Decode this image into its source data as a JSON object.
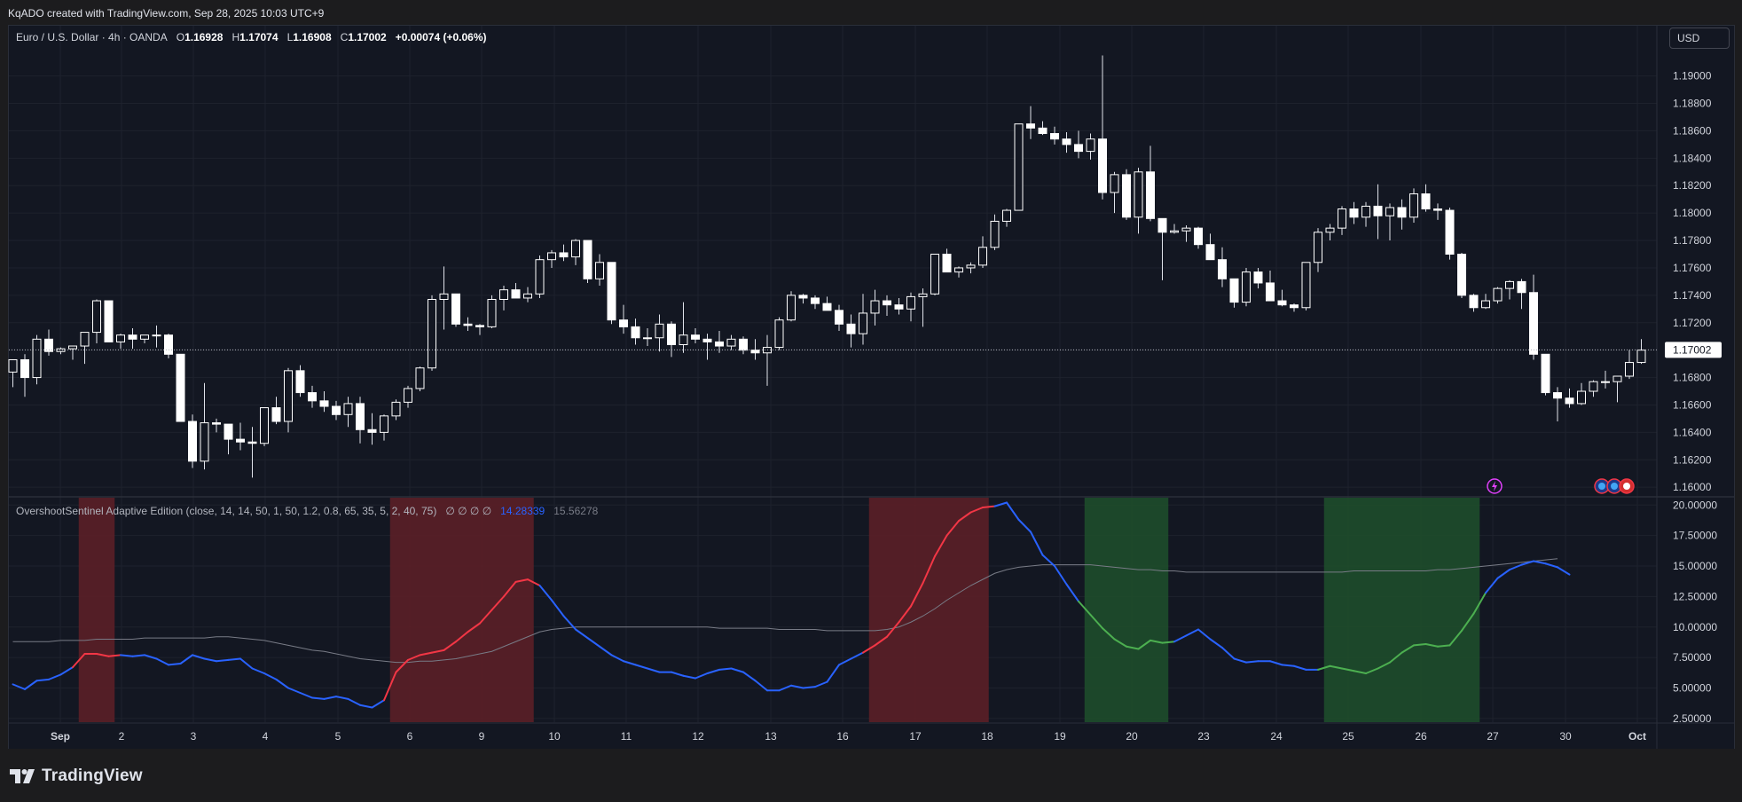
{
  "header": {
    "credit": "KqADO created with TradingView.com, Sep 28, 2025 10:03 UTC+9"
  },
  "currency_button": "USD",
  "legend": {
    "symbol": "Euro / U.S. Dollar · 4h · OANDA",
    "o_label": "O",
    "o_value": "1.16928",
    "h_label": "H",
    "h_value": "1.17074",
    "l_label": "L",
    "l_value": "1.16908",
    "c_label": "C",
    "c_value": "1.17002",
    "change": "+0.00074 (+0.06%)"
  },
  "indicator": {
    "title": "OvershootSentinel Adaptive Edition (close, 14, 14, 50, 1, 50, 1.2, 0.8, 65, 35, 5, 2, 40, 75)",
    "empty_values": "∅ ∅ ∅ ∅",
    "value_main": "14.28339",
    "value_baseline": "15.56278"
  },
  "footer": {
    "brand": "TradingView"
  },
  "colors": {
    "bg": "#131722",
    "grid": "#1e222d",
    "up": "#ffffff",
    "down": "#ffffff",
    "blue": "#2962ff",
    "red": "#f23645",
    "green": "#4caf50",
    "baseline": "#787b86",
    "red_zone": "#5b1f27",
    "green_zone": "#1e4d2b"
  },
  "chart_data": [
    {
      "type": "candlestick",
      "title": "Euro / U.S. Dollar · 4h · OANDA",
      "ylim": [
        1.1593,
        1.1936
      ],
      "y_ticks": [
        "1.19000",
        "1.18800",
        "1.18600",
        "1.18400",
        "1.18200",
        "1.18000",
        "1.17800",
        "1.17600",
        "1.17400",
        "1.17200",
        "1.17000",
        "1.16800",
        "1.16600",
        "1.16400",
        "1.16200",
        "1.16000"
      ],
      "last_price": "1.17002",
      "x_ticks": [
        "Sep",
        "2",
        "3",
        "4",
        "5",
        "6",
        "9",
        "10",
        "11",
        "12",
        "13",
        "16",
        "17",
        "18",
        "19",
        "20",
        "23",
        "24",
        "25",
        "26",
        "27",
        "30",
        "Oct"
      ],
      "candles": [
        [
          1.1684,
          1.1693,
          1.1673,
          1.1693
        ],
        [
          1.1693,
          1.1697,
          1.1666,
          1.168
        ],
        [
          1.168,
          1.1711,
          1.1675,
          1.1708
        ],
        [
          1.1708,
          1.1715,
          1.1696,
          1.1699
        ],
        [
          1.1699,
          1.1702,
          1.1697,
          1.1701
        ],
        [
          1.1701,
          1.1703,
          1.1693,
          1.1703
        ],
        [
          1.1703,
          1.1713,
          1.169,
          1.1713
        ],
        [
          1.1713,
          1.1737,
          1.1705,
          1.1736
        ],
        [
          1.1736,
          1.1736,
          1.1706,
          1.1706
        ],
        [
          1.1706,
          1.1712,
          1.1701,
          1.1711
        ],
        [
          1.1711,
          1.1716,
          1.1701,
          1.1708
        ],
        [
          1.1708,
          1.1711,
          1.1705,
          1.1711
        ],
        [
          1.1711,
          1.1718,
          1.1702,
          1.1711
        ],
        [
          1.1711,
          1.1712,
          1.1694,
          1.1697
        ],
        [
          1.1697,
          1.1697,
          1.1648,
          1.1648
        ],
        [
          1.1648,
          1.1653,
          1.1614,
          1.1619
        ],
        [
          1.1619,
          1.1676,
          1.1613,
          1.1647
        ],
        [
          1.1647,
          1.165,
          1.164,
          1.1646
        ],
        [
          1.1646,
          1.1646,
          1.1624,
          1.1635
        ],
        [
          1.1635,
          1.1647,
          1.1627,
          1.1633
        ],
        [
          1.1633,
          1.1644,
          1.1607,
          1.1632
        ],
        [
          1.1632,
          1.1658,
          1.163,
          1.1658
        ],
        [
          1.1658,
          1.1666,
          1.1646,
          1.1648
        ],
        [
          1.1648,
          1.1687,
          1.164,
          1.1685
        ],
        [
          1.1685,
          1.1689,
          1.1666,
          1.1669
        ],
        [
          1.1669,
          1.1674,
          1.1658,
          1.1663
        ],
        [
          1.1663,
          1.167,
          1.1655,
          1.1659
        ],
        [
          1.1659,
          1.1663,
          1.1649,
          1.1653
        ],
        [
          1.1653,
          1.1666,
          1.1644,
          1.1661
        ],
        [
          1.1661,
          1.1666,
          1.1632,
          1.1642
        ],
        [
          1.1642,
          1.1654,
          1.1631,
          1.164
        ],
        [
          1.164,
          1.1653,
          1.1634,
          1.1652
        ],
        [
          1.1652,
          1.1664,
          1.1649,
          1.1662
        ],
        [
          1.1662,
          1.1674,
          1.1658,
          1.1672
        ],
        [
          1.1672,
          1.1688,
          1.167,
          1.1687
        ],
        [
          1.1687,
          1.174,
          1.1685,
          1.1737
        ],
        [
          1.1737,
          1.1761,
          1.1715,
          1.1741
        ],
        [
          1.1741,
          1.1741,
          1.1717,
          1.1719
        ],
        [
          1.1719,
          1.1724,
          1.1714,
          1.1718
        ],
        [
          1.1718,
          1.1719,
          1.1711,
          1.1717
        ],
        [
          1.1717,
          1.174,
          1.1716,
          1.1737
        ],
        [
          1.1737,
          1.1747,
          1.1729,
          1.1744
        ],
        [
          1.1744,
          1.1749,
          1.1738,
          1.1738
        ],
        [
          1.1738,
          1.1746,
          1.1735,
          1.1741
        ],
        [
          1.1741,
          1.1769,
          1.1738,
          1.1766
        ],
        [
          1.1766,
          1.1773,
          1.176,
          1.1771
        ],
        [
          1.1771,
          1.1777,
          1.1765,
          1.1768
        ],
        [
          1.1768,
          1.1781,
          1.1762,
          1.178
        ],
        [
          1.178,
          1.178,
          1.1749,
          1.1752
        ],
        [
          1.1752,
          1.177,
          1.1747,
          1.1764
        ],
        [
          1.1764,
          1.1764,
          1.1719,
          1.1722
        ],
        [
          1.1722,
          1.1733,
          1.1712,
          1.1717
        ],
        [
          1.1717,
          1.1723,
          1.1704,
          1.1709
        ],
        [
          1.1709,
          1.1716,
          1.1703,
          1.1709
        ],
        [
          1.1709,
          1.1726,
          1.1699,
          1.1719
        ],
        [
          1.1719,
          1.1721,
          1.1695,
          1.1704
        ],
        [
          1.1704,
          1.1735,
          1.1698,
          1.1711
        ],
        [
          1.1711,
          1.1716,
          1.1705,
          1.1708
        ],
        [
          1.1708,
          1.1712,
          1.1693,
          1.1706
        ],
        [
          1.1706,
          1.1714,
          1.1698,
          1.1703
        ],
        [
          1.1703,
          1.1711,
          1.17,
          1.1708
        ],
        [
          1.1708,
          1.171,
          1.1697,
          1.17
        ],
        [
          1.17,
          1.1708,
          1.1693,
          1.1698
        ],
        [
          1.1698,
          1.1711,
          1.1674,
          1.1702
        ],
        [
          1.1702,
          1.1724,
          1.17,
          1.1722
        ],
        [
          1.1722,
          1.1743,
          1.1721,
          1.174
        ],
        [
          1.174,
          1.1741,
          1.1734,
          1.1738
        ],
        [
          1.1738,
          1.174,
          1.173,
          1.1734
        ],
        [
          1.1734,
          1.1739,
          1.1729,
          1.1729
        ],
        [
          1.1729,
          1.1733,
          1.1714,
          1.1719
        ],
        [
          1.1719,
          1.1726,
          1.1702,
          1.1712
        ],
        [
          1.1712,
          1.1741,
          1.1704,
          1.1727
        ],
        [
          1.1727,
          1.1744,
          1.1718,
          1.1736
        ],
        [
          1.1736,
          1.174,
          1.1725,
          1.1733
        ],
        [
          1.1733,
          1.1738,
          1.1726,
          1.173
        ],
        [
          1.173,
          1.1742,
          1.1721,
          1.1739
        ],
        [
          1.1739,
          1.1745,
          1.1717,
          1.1741
        ],
        [
          1.1741,
          1.177,
          1.174,
          1.177
        ],
        [
          1.177,
          1.1774,
          1.1757,
          1.1757
        ],
        [
          1.1757,
          1.1761,
          1.1753,
          1.176
        ],
        [
          1.176,
          1.1764,
          1.1756,
          1.1762
        ],
        [
          1.1762,
          1.1783,
          1.176,
          1.1775
        ],
        [
          1.1775,
          1.1799,
          1.1773,
          1.1794
        ],
        [
          1.1794,
          1.1803,
          1.179,
          1.1802
        ],
        [
          1.1802,
          1.1865,
          1.1802,
          1.1865
        ],
        [
          1.1865,
          1.1878,
          1.1854,
          1.1862
        ],
        [
          1.1862,
          1.1867,
          1.1857,
          1.1858
        ],
        [
          1.1858,
          1.1863,
          1.185,
          1.1854
        ],
        [
          1.1854,
          1.1859,
          1.1844,
          1.185
        ],
        [
          1.185,
          1.186,
          1.184,
          1.1845
        ],
        [
          1.1845,
          1.1858,
          1.1839,
          1.1854
        ],
        [
          1.1854,
          1.1915,
          1.181,
          1.1815
        ],
        [
          1.1815,
          1.183,
          1.18,
          1.1828
        ],
        [
          1.1828,
          1.1832,
          1.1795,
          1.1797
        ],
        [
          1.1797,
          1.1833,
          1.1785,
          1.183
        ],
        [
          1.183,
          1.1849,
          1.1794,
          1.1796
        ],
        [
          1.1796,
          1.1796,
          1.1751,
          1.1786
        ],
        [
          1.1786,
          1.1792,
          1.1785,
          1.1787
        ],
        [
          1.1787,
          1.1791,
          1.1779,
          1.1789
        ],
        [
          1.1789,
          1.179,
          1.1774,
          1.1777
        ],
        [
          1.1777,
          1.1785,
          1.1766,
          1.1766
        ],
        [
          1.1766,
          1.1775,
          1.1746,
          1.1752
        ],
        [
          1.1752,
          1.1752,
          1.1731,
          1.1735
        ],
        [
          1.1735,
          1.176,
          1.1732,
          1.1757
        ],
        [
          1.1757,
          1.176,
          1.1745,
          1.1749
        ],
        [
          1.1749,
          1.1758,
          1.1736,
          1.1736
        ],
        [
          1.1736,
          1.1744,
          1.1732,
          1.1733
        ],
        [
          1.1733,
          1.1734,
          1.1728,
          1.1731
        ],
        [
          1.1731,
          1.1764,
          1.1729,
          1.1764
        ],
        [
          1.1764,
          1.1789,
          1.1757,
          1.1786
        ],
        [
          1.1786,
          1.1792,
          1.178,
          1.1789
        ],
        [
          1.1789,
          1.1805,
          1.1784,
          1.1803
        ],
        [
          1.1803,
          1.1808,
          1.1792,
          1.1797
        ],
        [
          1.1797,
          1.1808,
          1.179,
          1.1805
        ],
        [
          1.1805,
          1.1821,
          1.1781,
          1.1798
        ],
        [
          1.1798,
          1.1807,
          1.178,
          1.1804
        ],
        [
          1.1804,
          1.181,
          1.1788,
          1.1797
        ],
        [
          1.1797,
          1.1818,
          1.1793,
          1.1814
        ],
        [
          1.1814,
          1.1821,
          1.1801,
          1.1803
        ],
        [
          1.1803,
          1.1807,
          1.1795,
          1.1802
        ],
        [
          1.1802,
          1.1804,
          1.1766,
          1.177
        ],
        [
          1.177,
          1.1771,
          1.1738,
          1.174
        ],
        [
          1.174,
          1.1741,
          1.1728,
          1.1731
        ],
        [
          1.1731,
          1.1741,
          1.173,
          1.1736
        ],
        [
          1.1736,
          1.1746,
          1.1734,
          1.1745
        ],
        [
          1.1745,
          1.1751,
          1.1737,
          1.175
        ],
        [
          1.175,
          1.1752,
          1.173,
          1.1742
        ],
        [
          1.1742,
          1.1755,
          1.1693,
          1.1697
        ],
        [
          1.1697,
          1.1697,
          1.1667,
          1.1669
        ],
        [
          1.1669,
          1.1673,
          1.1648,
          1.1665
        ],
        [
          1.1665,
          1.1672,
          1.1658,
          1.1661
        ],
        [
          1.1661,
          1.1676,
          1.166,
          1.167
        ],
        [
          1.167,
          1.1678,
          1.1666,
          1.1677
        ],
        [
          1.1677,
          1.1685,
          1.1672,
          1.1677
        ],
        [
          1.1677,
          1.1681,
          1.1662,
          1.1681
        ],
        [
          1.1681,
          1.17,
          1.1679,
          1.1691
        ],
        [
          1.1691,
          1.1708,
          1.169,
          1.17
        ]
      ]
    },
    {
      "type": "line",
      "title": "OvershootSentinel Adaptive Edition (close, 14, 14, 50, 1, 50, 1.2, 0.8, 65, 35, 5, 2, 40, 75)",
      "ylim": [
        2.2,
        20.6
      ],
      "y_ticks": [
        "20.00000",
        "17.50000",
        "15.00000",
        "12.50000",
        "10.00000",
        "7.50000",
        "5.00000",
        "2.50000"
      ],
      "series": [
        {
          "values": [
            5.3,
            4.9,
            5.6,
            5.7,
            6.1,
            6.7,
            7.8,
            7.8,
            7.6,
            7.7,
            7.6,
            7.7,
            7.4,
            6.9,
            7.0,
            7.7,
            7.4,
            7.2,
            7.3,
            7.4,
            6.6,
            6.2,
            5.7,
            5.0,
            4.6,
            4.2,
            4.1,
            4.3,
            4.1,
            3.6,
            3.4,
            4.0,
            6.3,
            7.3,
            7.7,
            7.9,
            8.1,
            8.8,
            9.6,
            10.3,
            11.4,
            12.5,
            13.7,
            13.9,
            13.4,
            12.2,
            10.9,
            9.8,
            9.1,
            8.4,
            7.7,
            7.2,
            6.9,
            6.6,
            6.3,
            6.3,
            6.0,
            5.8,
            6.2,
            6.5,
            6.6,
            6.3,
            5.6,
            4.8,
            4.8,
            5.2,
            5.0,
            5.1,
            5.5,
            6.9,
            7.4,
            7.9,
            8.5,
            9.2,
            10.4,
            11.7,
            13.6,
            15.8,
            17.5,
            18.7,
            19.4,
            19.8,
            19.9,
            20.2,
            18.8,
            17.8,
            15.9,
            15.0,
            13.5,
            12.1,
            11.0,
            9.9,
            9.0,
            8.4,
            8.2,
            8.9,
            8.7,
            8.8,
            9.3,
            9.8,
            9.0,
            8.3,
            7.4,
            7.1,
            7.2,
            7.2,
            6.9,
            6.8,
            6.5,
            6.5,
            6.8,
            6.6,
            6.4,
            6.2,
            6.6,
            7.1,
            7.9,
            8.5,
            8.6,
            8.4,
            8.5,
            9.7,
            11.1,
            12.8,
            14.0,
            14.7,
            15.1,
            15.4,
            15.2,
            14.9,
            14.3
          ],
          "color_blue": "#2962ff"
        },
        {
          "values": [
            8.8,
            8.8,
            8.8,
            8.8,
            8.9,
            8.9,
            8.9,
            9.0,
            9.0,
            9.0,
            9.0,
            9.1,
            9.1,
            9.1,
            9.1,
            9.1,
            9.1,
            9.2,
            9.2,
            9.1,
            9.0,
            8.9,
            8.7,
            8.5,
            8.3,
            8.1,
            8.0,
            7.8,
            7.6,
            7.4,
            7.3,
            7.2,
            7.1,
            7.1,
            7.2,
            7.2,
            7.3,
            7.4,
            7.6,
            7.8,
            8.0,
            8.4,
            8.8,
            9.2,
            9.6,
            9.8,
            9.9,
            10.0,
            10.0,
            10.0,
            10.0,
            10.0,
            10.0,
            10.0,
            10.0,
            10.0,
            10.0,
            10.0,
            10.0,
            9.9,
            9.9,
            9.9,
            9.9,
            9.9,
            9.8,
            9.8,
            9.8,
            9.8,
            9.7,
            9.7,
            9.7,
            9.7,
            9.7,
            9.8,
            10.0,
            10.4,
            10.9,
            11.5,
            12.2,
            12.8,
            13.4,
            13.9,
            14.4,
            14.7,
            14.9,
            15.0,
            15.1,
            15.1,
            15.1,
            15.1,
            15.1,
            15.0,
            14.9,
            14.8,
            14.7,
            14.7,
            14.6,
            14.6,
            14.5,
            14.5,
            14.5,
            14.5,
            14.5,
            14.5,
            14.5,
            14.5,
            14.5,
            14.5,
            14.5,
            14.5,
            14.5,
            14.5,
            14.6,
            14.6,
            14.6,
            14.6,
            14.6,
            14.6,
            14.6,
            14.7,
            14.7,
            14.8,
            14.9,
            15.0,
            15.1,
            15.2,
            15.3,
            15.4,
            15.5,
            15.6
          ],
          "color": "#787b86"
        }
      ],
      "zones": [
        {
          "type": "red",
          "from": 6,
          "to": 8
        },
        {
          "type": "red",
          "from": 32,
          "to": 43
        },
        {
          "type": "red",
          "from": 72,
          "to": 81
        },
        {
          "type": "green",
          "from": 90,
          "to": 96
        },
        {
          "type": "green",
          "from": 110,
          "to": 122
        }
      ]
    }
  ]
}
